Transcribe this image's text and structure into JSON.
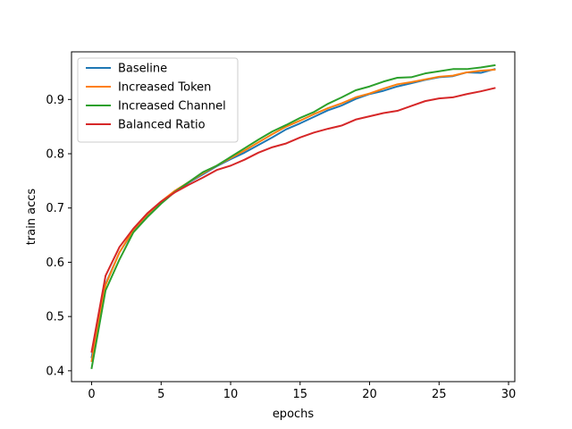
{
  "chart_data": {
    "type": "line",
    "title": "",
    "xlabel": "epochs",
    "ylabel": "train accs",
    "xlim": [
      -1.45,
      30.45
    ],
    "ylim": [
      0.38,
      0.9878
    ],
    "xticks": [
      0,
      5,
      10,
      15,
      20,
      25,
      30
    ],
    "yticks": [
      0.4,
      0.5,
      0.6,
      0.7,
      0.8,
      0.9
    ],
    "grid": false,
    "legend_position": "top-left",
    "x": [
      0,
      1,
      2,
      3,
      4,
      5,
      6,
      7,
      8,
      9,
      10,
      11,
      12,
      13,
      14,
      15,
      16,
      17,
      18,
      19,
      20,
      21,
      22,
      23,
      24,
      25,
      26,
      27,
      28,
      29
    ],
    "series": [
      {
        "name": "Baseline",
        "color": "#1f77b4",
        "values": [
          0.425,
          0.56,
          0.618,
          0.658,
          0.686,
          0.71,
          0.73,
          0.747,
          0.762,
          0.777,
          0.79,
          0.802,
          0.816,
          0.83,
          0.845,
          0.856,
          0.868,
          0.88,
          0.889,
          0.901,
          0.91,
          0.916,
          0.924,
          0.93,
          0.936,
          0.941,
          0.943,
          0.95,
          0.949,
          0.956
        ]
      },
      {
        "name": "Increased Token",
        "color": "#ff7f0e",
        "values": [
          0.418,
          0.558,
          0.618,
          0.66,
          0.688,
          0.712,
          0.732,
          0.748,
          0.764,
          0.778,
          0.792,
          0.806,
          0.821,
          0.836,
          0.85,
          0.861,
          0.873,
          0.884,
          0.893,
          0.904,
          0.911,
          0.92,
          0.928,
          0.932,
          0.937,
          0.942,
          0.944,
          0.95,
          0.953,
          0.955
        ]
      },
      {
        "name": "Increased Channel",
        "color": "#2ca02c",
        "values": [
          0.405,
          0.548,
          0.605,
          0.655,
          0.683,
          0.708,
          0.73,
          0.748,
          0.766,
          0.778,
          0.794,
          0.81,
          0.826,
          0.841,
          0.853,
          0.866,
          0.877,
          0.892,
          0.904,
          0.917,
          0.924,
          0.933,
          0.94,
          0.941,
          0.948,
          0.952,
          0.956,
          0.956,
          0.959,
          0.963
        ]
      },
      {
        "name": "Balanced Ratio",
        "color": "#d62728",
        "values": [
          0.435,
          0.575,
          0.628,
          0.662,
          0.69,
          0.712,
          0.729,
          0.743,
          0.756,
          0.77,
          0.778,
          0.789,
          0.802,
          0.812,
          0.819,
          0.83,
          0.839,
          0.846,
          0.852,
          0.863,
          0.869,
          0.875,
          0.879,
          0.888,
          0.897,
          0.902,
          0.904,
          0.91,
          0.915,
          0.921
        ]
      }
    ]
  }
}
